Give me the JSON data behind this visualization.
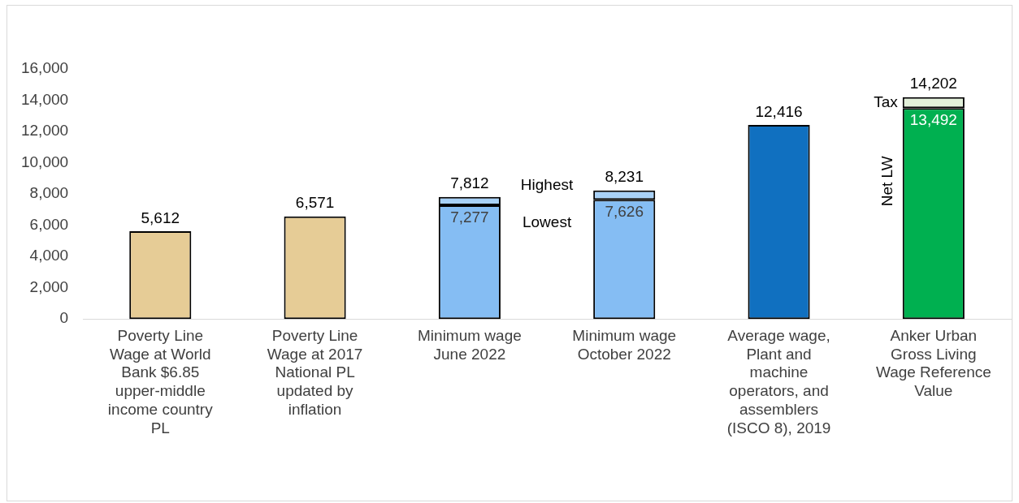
{
  "chart_data": {
    "type": "bar",
    "stacked": true,
    "categories": [
      "Poverty Line Wage at World Bank $6.85 upper-middle income country PL",
      "Poverty Line Wage at 2017 National PL updated by inflation",
      "Minimum wage June 2022",
      "Minimum wage October 2022",
      "Average wage, Plant and machine operators, and assemblers (ISCO 8), 2019",
      "Anker Urban Gross Living Wage Reference Value"
    ],
    "series": [
      {
        "colors": [
          "#e6cc96",
          "#e6cc96",
          "#85bdf3",
          "#85bdf3",
          "#1070c0",
          "#00b050"
        ],
        "values": [
          5612,
          6571,
          7277,
          7626,
          12416,
          13492
        ],
        "value_labels": [
          null,
          null,
          "7,277",
          "7,626",
          null,
          "13,492"
        ]
      },
      {
        "colors": [
          null,
          null,
          "#a8d1f7",
          "#a8d1f7",
          null,
          "#e2f0d9"
        ],
        "values": [
          null,
          null,
          535,
          605,
          null,
          710
        ]
      }
    ],
    "totals": [
      "5,612",
      "6,571",
      "7,812",
      "8,231",
      "12,416",
      "14,202"
    ],
    "ylim": [
      0,
      16000
    ],
    "yticks": [
      {
        "value": 0,
        "label": "0"
      },
      {
        "value": 2000,
        "label": "2,000"
      },
      {
        "value": 4000,
        "label": "4,000"
      },
      {
        "value": 6000,
        "label": "6,000"
      },
      {
        "value": 8000,
        "label": "8,000"
      },
      {
        "value": 10000,
        "label": "10,000"
      },
      {
        "value": 12000,
        "label": "12,000"
      },
      {
        "value": 14000,
        "label": "14,000"
      },
      {
        "value": 16000,
        "label": "16,000"
      }
    ],
    "grid": false,
    "legend": false,
    "annotations": [
      "Highest",
      "Lowest",
      {
        "text": "Tax",
        "x": "Anker Urban Gross Living Wage Reference Value",
        "y": 13850
      },
      "Net LW"
    ]
  }
}
